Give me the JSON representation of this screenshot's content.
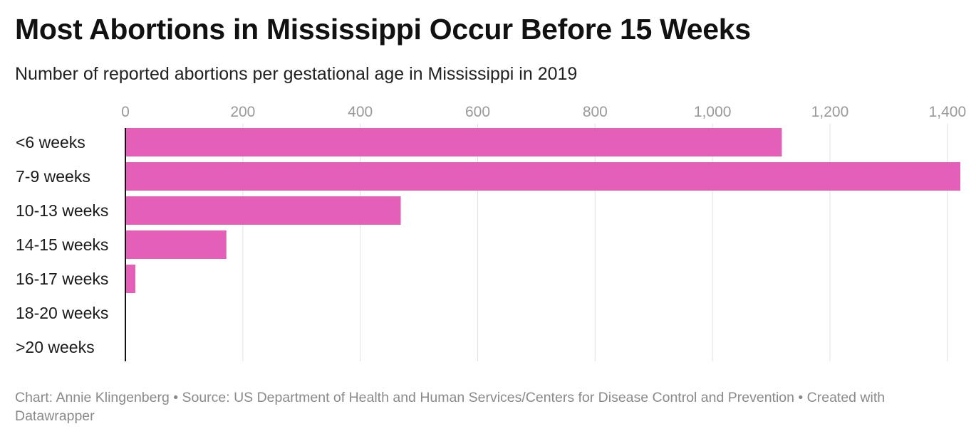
{
  "title": "Most Abortions in Mississippi Occur Before 15 Weeks",
  "subtitle": "Number of reported abortions per gestational age in Mississippi in 2019",
  "footer": "Chart: Annie Klingenberg • Source: US Department of Health and Human Services/Centers for Disease Control and Prevention • Created with Datawrapper",
  "colors": {
    "bar": "#e460b8",
    "grid": "#e2e2e2",
    "axis": "#111111",
    "tick_text": "#999999",
    "label_text": "#1a1a1a"
  },
  "chart_data": {
    "type": "bar",
    "orientation": "horizontal",
    "categories": [
      "<6 weeks",
      "7-9 weeks",
      "10-13 weeks",
      "14-15 weeks",
      "16-17 weeks",
      "18-20 weeks",
      ">20 weeks"
    ],
    "values": [
      1118,
      1422,
      469,
      172,
      17,
      0,
      0
    ],
    "xlim": [
      0,
      1422
    ],
    "xticks": [
      0,
      200,
      400,
      600,
      800,
      1000,
      1200,
      1400
    ],
    "xtick_labels": [
      "0",
      "200",
      "400",
      "600",
      "800",
      "1,000",
      "1,200",
      "1,400"
    ],
    "grid": true,
    "axis_position": "top",
    "legend": "none"
  }
}
